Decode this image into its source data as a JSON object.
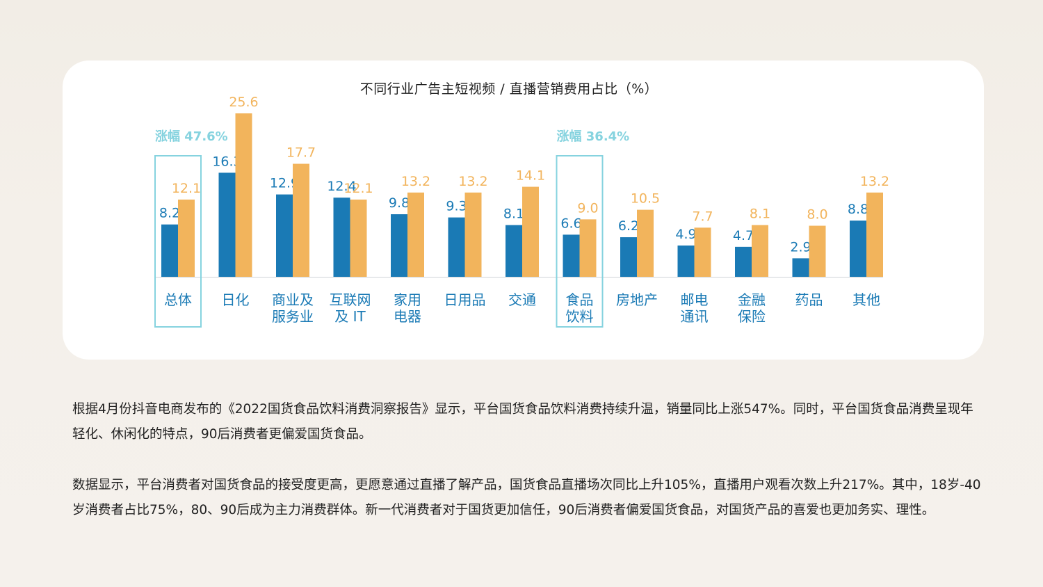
{
  "chart_data": {
    "type": "bar",
    "title": "不同行业广告主短视频 / 直播营销费用占比（%）",
    "categories": [
      [
        "总体"
      ],
      [
        "日化"
      ],
      [
        "商业及",
        "服务业"
      ],
      [
        "互联网",
        "及 IT"
      ],
      [
        "家用",
        "电器"
      ],
      [
        "日用品"
      ],
      [
        "交通"
      ],
      [
        "食品",
        "饮料"
      ],
      [
        "房地产"
      ],
      [
        "邮电",
        "通讯"
      ],
      [
        "金融",
        "保险"
      ],
      [
        "药品"
      ],
      [
        "其他"
      ]
    ],
    "series": [
      {
        "values": [
          8.2,
          16.3,
          12.9,
          12.4,
          9.8,
          9.3,
          8.1,
          6.6,
          6.2,
          4.9,
          4.7,
          2.9,
          8.8
        ],
        "color": "#1a7ab5"
      },
      {
        "values": [
          12.1,
          25.6,
          17.7,
          12.1,
          13.2,
          13.2,
          14.1,
          9.0,
          10.5,
          7.7,
          8.1,
          8.0,
          13.2
        ],
        "color": "#f2b45c"
      }
    ],
    "value_labels": [
      [
        "8.2",
        "16.3",
        "12.9",
        "12.4",
        "9.8",
        "9.3",
        "8.1",
        "6.6",
        "6.2",
        "4.9",
        "4.7",
        "2.9",
        "8.8"
      ],
      [
        "12.1",
        "25.6",
        "17.7",
        "12.1",
        "13.2",
        "13.2",
        "14.1",
        "9.0",
        "10.5",
        "7.7",
        "8.1",
        "8.0",
        "13.2"
      ]
    ],
    "ylim": [
      0,
      25.6
    ],
    "highlights": [
      {
        "category_index": 0,
        "label": "涨幅 47.6%"
      },
      {
        "category_index": 7,
        "label": "涨幅 36.4%"
      }
    ],
    "highlight_color": "#86d3df",
    "category_label_color": "#1a7ab5",
    "grid": false
  },
  "paragraphs": [
    "根据4月份抖音电商发布的《2022国货食品饮料消费洞察报告》显示，平台国货食品饮料消费持续升温，销量同比上涨547%。同时，平台国货食品消费呈现年轻化、休闲化的特点，90后消费者更偏爱国货食品。",
    "数据显示，平台消费者对国货食品的接受度更高，更愿意通过直播了解产品，国货食品直播场次同比上升105%，直播用户观看次数上升217%。其中，18岁-40岁消费者占比75%，80、90后成为主力消费群体。新一代消费者对于国货更加信任，90后消费者偏爱国货食品，对国货产品的喜爱也更加务实、理性。"
  ]
}
